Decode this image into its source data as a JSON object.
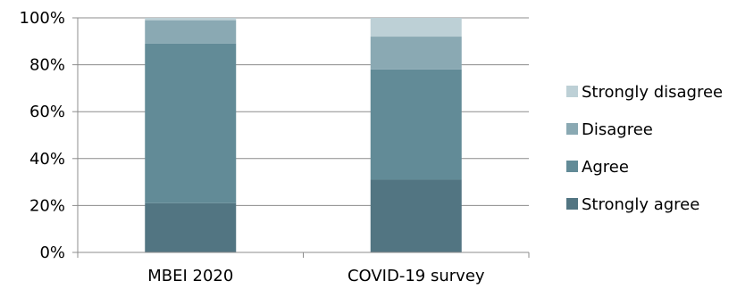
{
  "chart_data": {
    "type": "bar",
    "stacked": true,
    "percent": true,
    "categories": [
      "MBEI 2020",
      "COVID-19 survey"
    ],
    "series": [
      {
        "name": "Strongly agree",
        "values": [
          21,
          31
        ],
        "color": "#527582"
      },
      {
        "name": "Agree",
        "values": [
          68,
          47
        ],
        "color": "#628B97"
      },
      {
        "name": "Disagree",
        "values": [
          10,
          14
        ],
        "color": "#8AA9B3"
      },
      {
        "name": "Strongly disagree",
        "values": [
          1,
          8
        ],
        "color": "#BDD0D6"
      }
    ],
    "ylim": [
      0,
      100
    ],
    "y_ticks": [
      "0%",
      "20%",
      "40%",
      "60%",
      "80%",
      "100%"
    ],
    "grid": true,
    "legend": "right",
    "legend_order": [
      "Strongly disagree",
      "Disagree",
      "Agree",
      "Strongly agree"
    ],
    "title": "",
    "xlabel": "",
    "ylabel": ""
  }
}
